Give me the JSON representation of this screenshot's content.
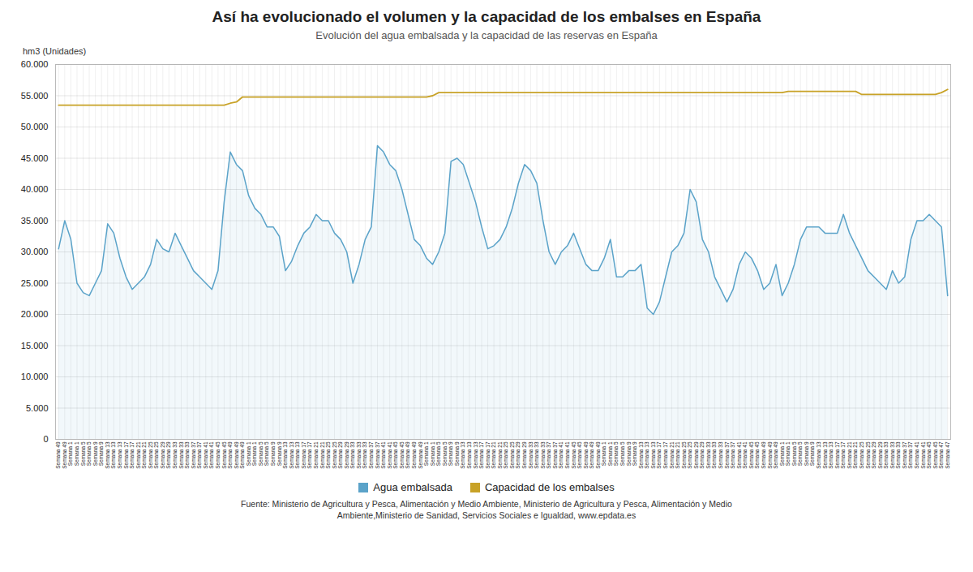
{
  "chart_data": {
    "type": "line",
    "title": "Así ha evolucionado el volumen y la capacidad de los embalses en España",
    "subtitle": "Evolución del agua embalsada y la capacidad de las reservas en España",
    "ylabel": "hm3 (Unidades)",
    "source": "Fuente: Ministerio de Agricultura y Pesca, Alimentación y Medio Ambiente, Ministerio de Agricultura y Pesca, Alimentación y Medio\nAmbiente,Ministerio de Sanidad, Servicios Sociales e Igualdad, www.epdata.es",
    "categories": [
      "Semana 49",
      "Semana 49",
      "Semana 1",
      "Semana 1",
      "Semana 5",
      "Semana 5",
      "Semana 9",
      "Semana 9",
      "Semana 13",
      "Semana 13",
      "Semana 13",
      "Semana 17",
      "Semana 17",
      "Semana 21",
      "Semana 21",
      "Semana 25",
      "Semana 25",
      "Semana 29",
      "Semana 29",
      "Semana 33",
      "Semana 33",
      "Semana 33",
      "Semana 37",
      "Semana 37",
      "Semana 41",
      "Semana 41",
      "Semana 45",
      "Semana 45",
      "Semana 49",
      "Semana 49",
      "Semana 49",
      "Semana 1",
      "Semana 1",
      "Semana 5",
      "Semana 5",
      "Semana 9",
      "Semana 9",
      "Semana 13",
      "Semana 13",
      "Semana 13",
      "Semana 17",
      "Semana 17",
      "Semana 21",
      "Semana 21",
      "Semana 25",
      "Semana 25",
      "Semana 29",
      "Semana 29",
      "Semana 33",
      "Semana 33",
      "Semana 33",
      "Semana 37",
      "Semana 37",
      "Semana 41",
      "Semana 41",
      "Semana 45",
      "Semana 45",
      "Semana 49",
      "Semana 49",
      "Semana 49",
      "Semana 1",
      "Semana 1",
      "Semana 5",
      "Semana 5",
      "Semana 9",
      "Semana 9",
      "Semana 13",
      "Semana 13",
      "Semana 13",
      "Semana 17",
      "Semana 17",
      "Semana 21",
      "Semana 21",
      "Semana 25",
      "Semana 25",
      "Semana 29",
      "Semana 29",
      "Semana 33",
      "Semana 33",
      "Semana 33",
      "Semana 37",
      "Semana 37",
      "Semana 41",
      "Semana 41",
      "Semana 45",
      "Semana 45",
      "Semana 49",
      "Semana 49",
      "Semana 49",
      "Semana 1",
      "Semana 1",
      "Semana 5",
      "Semana 5",
      "Semana 9",
      "Semana 9",
      "Semana 13",
      "Semana 13",
      "Semana 13",
      "Semana 17",
      "Semana 17",
      "Semana 21",
      "Semana 21",
      "Semana 25",
      "Semana 25",
      "Semana 29",
      "Semana 29",
      "Semana 33",
      "Semana 33",
      "Semana 33",
      "Semana 37",
      "Semana 37",
      "Semana 41",
      "Semana 41",
      "Semana 45",
      "Semana 45",
      "Semana 49",
      "Semana 49",
      "Semana 49",
      "Semana 1",
      "Semana 1",
      "Semana 5",
      "Semana 5",
      "Semana 9",
      "Semana 9",
      "Semana 13",
      "Semana 13",
      "Semana 13",
      "Semana 17",
      "Semana 17",
      "Semana 21",
      "Semana 21",
      "Semana 25",
      "Semana 25",
      "Semana 29",
      "Semana 29",
      "Semana 33",
      "Semana 33",
      "Semana 33",
      "Semana 37",
      "Semana 37",
      "Semana 41",
      "Semana 41",
      "Semana 45",
      "Semana 45",
      "Semana 47",
      "Semana 47"
    ],
    "series": [
      {
        "name": "Agua embalsada",
        "type": "area",
        "color": "#5ba3c9",
        "values": [
          30500,
          35000,
          32000,
          25000,
          23500,
          23000,
          25000,
          27000,
          34500,
          33000,
          29000,
          26000,
          24000,
          25000,
          26000,
          28000,
          32000,
          30500,
          30000,
          33000,
          31000,
          29000,
          27000,
          26000,
          25000,
          24000,
          27000,
          38000,
          46000,
          44000,
          43000,
          39000,
          37000,
          36000,
          34000,
          34000,
          32500,
          27000,
          28500,
          31000,
          33000,
          34000,
          36000,
          35000,
          35000,
          33000,
          32000,
          30000,
          25000,
          28000,
          32000,
          34000,
          47000,
          46000,
          44000,
          43000,
          40000,
          36000,
          32000,
          31000,
          29000,
          28000,
          30000,
          33000,
          44500,
          45000,
          44000,
          41000,
          38000,
          34000,
          30500,
          31000,
          32000,
          34000,
          37000,
          41000,
          44000,
          43000,
          41000,
          35000,
          30000,
          28000,
          30000,
          31000,
          33000,
          30500,
          28000,
          27000,
          27000,
          29000,
          32000,
          26000,
          26000,
          27000,
          27000,
          28000,
          21000,
          20000,
          22000,
          26000,
          30000,
          31000,
          33000,
          40000,
          38000,
          32000,
          30000,
          26000,
          24000,
          22000,
          24000,
          28000,
          30000,
          29000,
          27000,
          24000,
          25000,
          28000,
          23000,
          25000,
          28000,
          32000,
          34000,
          34000,
          34000,
          33000,
          33000,
          33000,
          36000,
          33000,
          31000,
          29000,
          27000,
          26000,
          25000,
          24000,
          27000,
          25000,
          26000,
          32000,
          35000,
          35000,
          36000,
          35000,
          34000,
          23000
        ]
      },
      {
        "name": "Capacidad de los embalses",
        "type": "line",
        "color": "#c8a227",
        "values": [
          53500,
          53500,
          53500,
          53500,
          53500,
          53500,
          53500,
          53500,
          53500,
          53500,
          53500,
          53500,
          53500,
          53500,
          53500,
          53500,
          53500,
          53500,
          53500,
          53500,
          53500,
          53500,
          53500,
          53500,
          53500,
          53500,
          53500,
          53500,
          53800,
          54000,
          54800,
          54800,
          54800,
          54800,
          54800,
          54800,
          54800,
          54800,
          54800,
          54800,
          54800,
          54800,
          54800,
          54800,
          54800,
          54800,
          54800,
          54800,
          54800,
          54800,
          54800,
          54800,
          54800,
          54800,
          54800,
          54800,
          54800,
          54800,
          54800,
          54800,
          54800,
          55000,
          55500,
          55500,
          55500,
          55500,
          55500,
          55500,
          55500,
          55500,
          55500,
          55500,
          55500,
          55500,
          55500,
          55500,
          55500,
          55500,
          55500,
          55500,
          55500,
          55500,
          55500,
          55500,
          55500,
          55500,
          55500,
          55500,
          55500,
          55500,
          55500,
          55500,
          55500,
          55500,
          55500,
          55500,
          55500,
          55500,
          55500,
          55500,
          55500,
          55500,
          55500,
          55500,
          55500,
          55500,
          55500,
          55500,
          55500,
          55500,
          55500,
          55500,
          55500,
          55500,
          55500,
          55500,
          55500,
          55500,
          55500,
          55700,
          55700,
          55700,
          55700,
          55700,
          55700,
          55700,
          55700,
          55700,
          55700,
          55700,
          55700,
          55200,
          55200,
          55200,
          55200,
          55200,
          55200,
          55200,
          55200,
          55200,
          55200,
          55200,
          55200,
          55200,
          55500,
          56000
        ]
      }
    ],
    "ylim": [
      0,
      60000
    ],
    "yticks": [
      0,
      {
        "value": 5000,
        "label": "5.000"
      },
      {
        "value": 10000,
        "label": "10.000"
      },
      {
        "value": 15000,
        "label": "15.000"
      },
      {
        "value": 20000,
        "label": "20.000"
      },
      {
        "value": 25000,
        "label": "25.000"
      },
      {
        "value": 30000,
        "label": "30.000"
      },
      {
        "value": 35000,
        "label": "35.000"
      },
      {
        "value": 40000,
        "label": "40.000"
      },
      {
        "value": 45000,
        "label": "45.000"
      },
      {
        "value": 50000,
        "label": "50.000"
      },
      {
        "value": 55000,
        "label": "55.000"
      },
      {
        "value": 60000,
        "label": "60.000"
      }
    ],
    "grid": true,
    "legend": "bottom"
  }
}
